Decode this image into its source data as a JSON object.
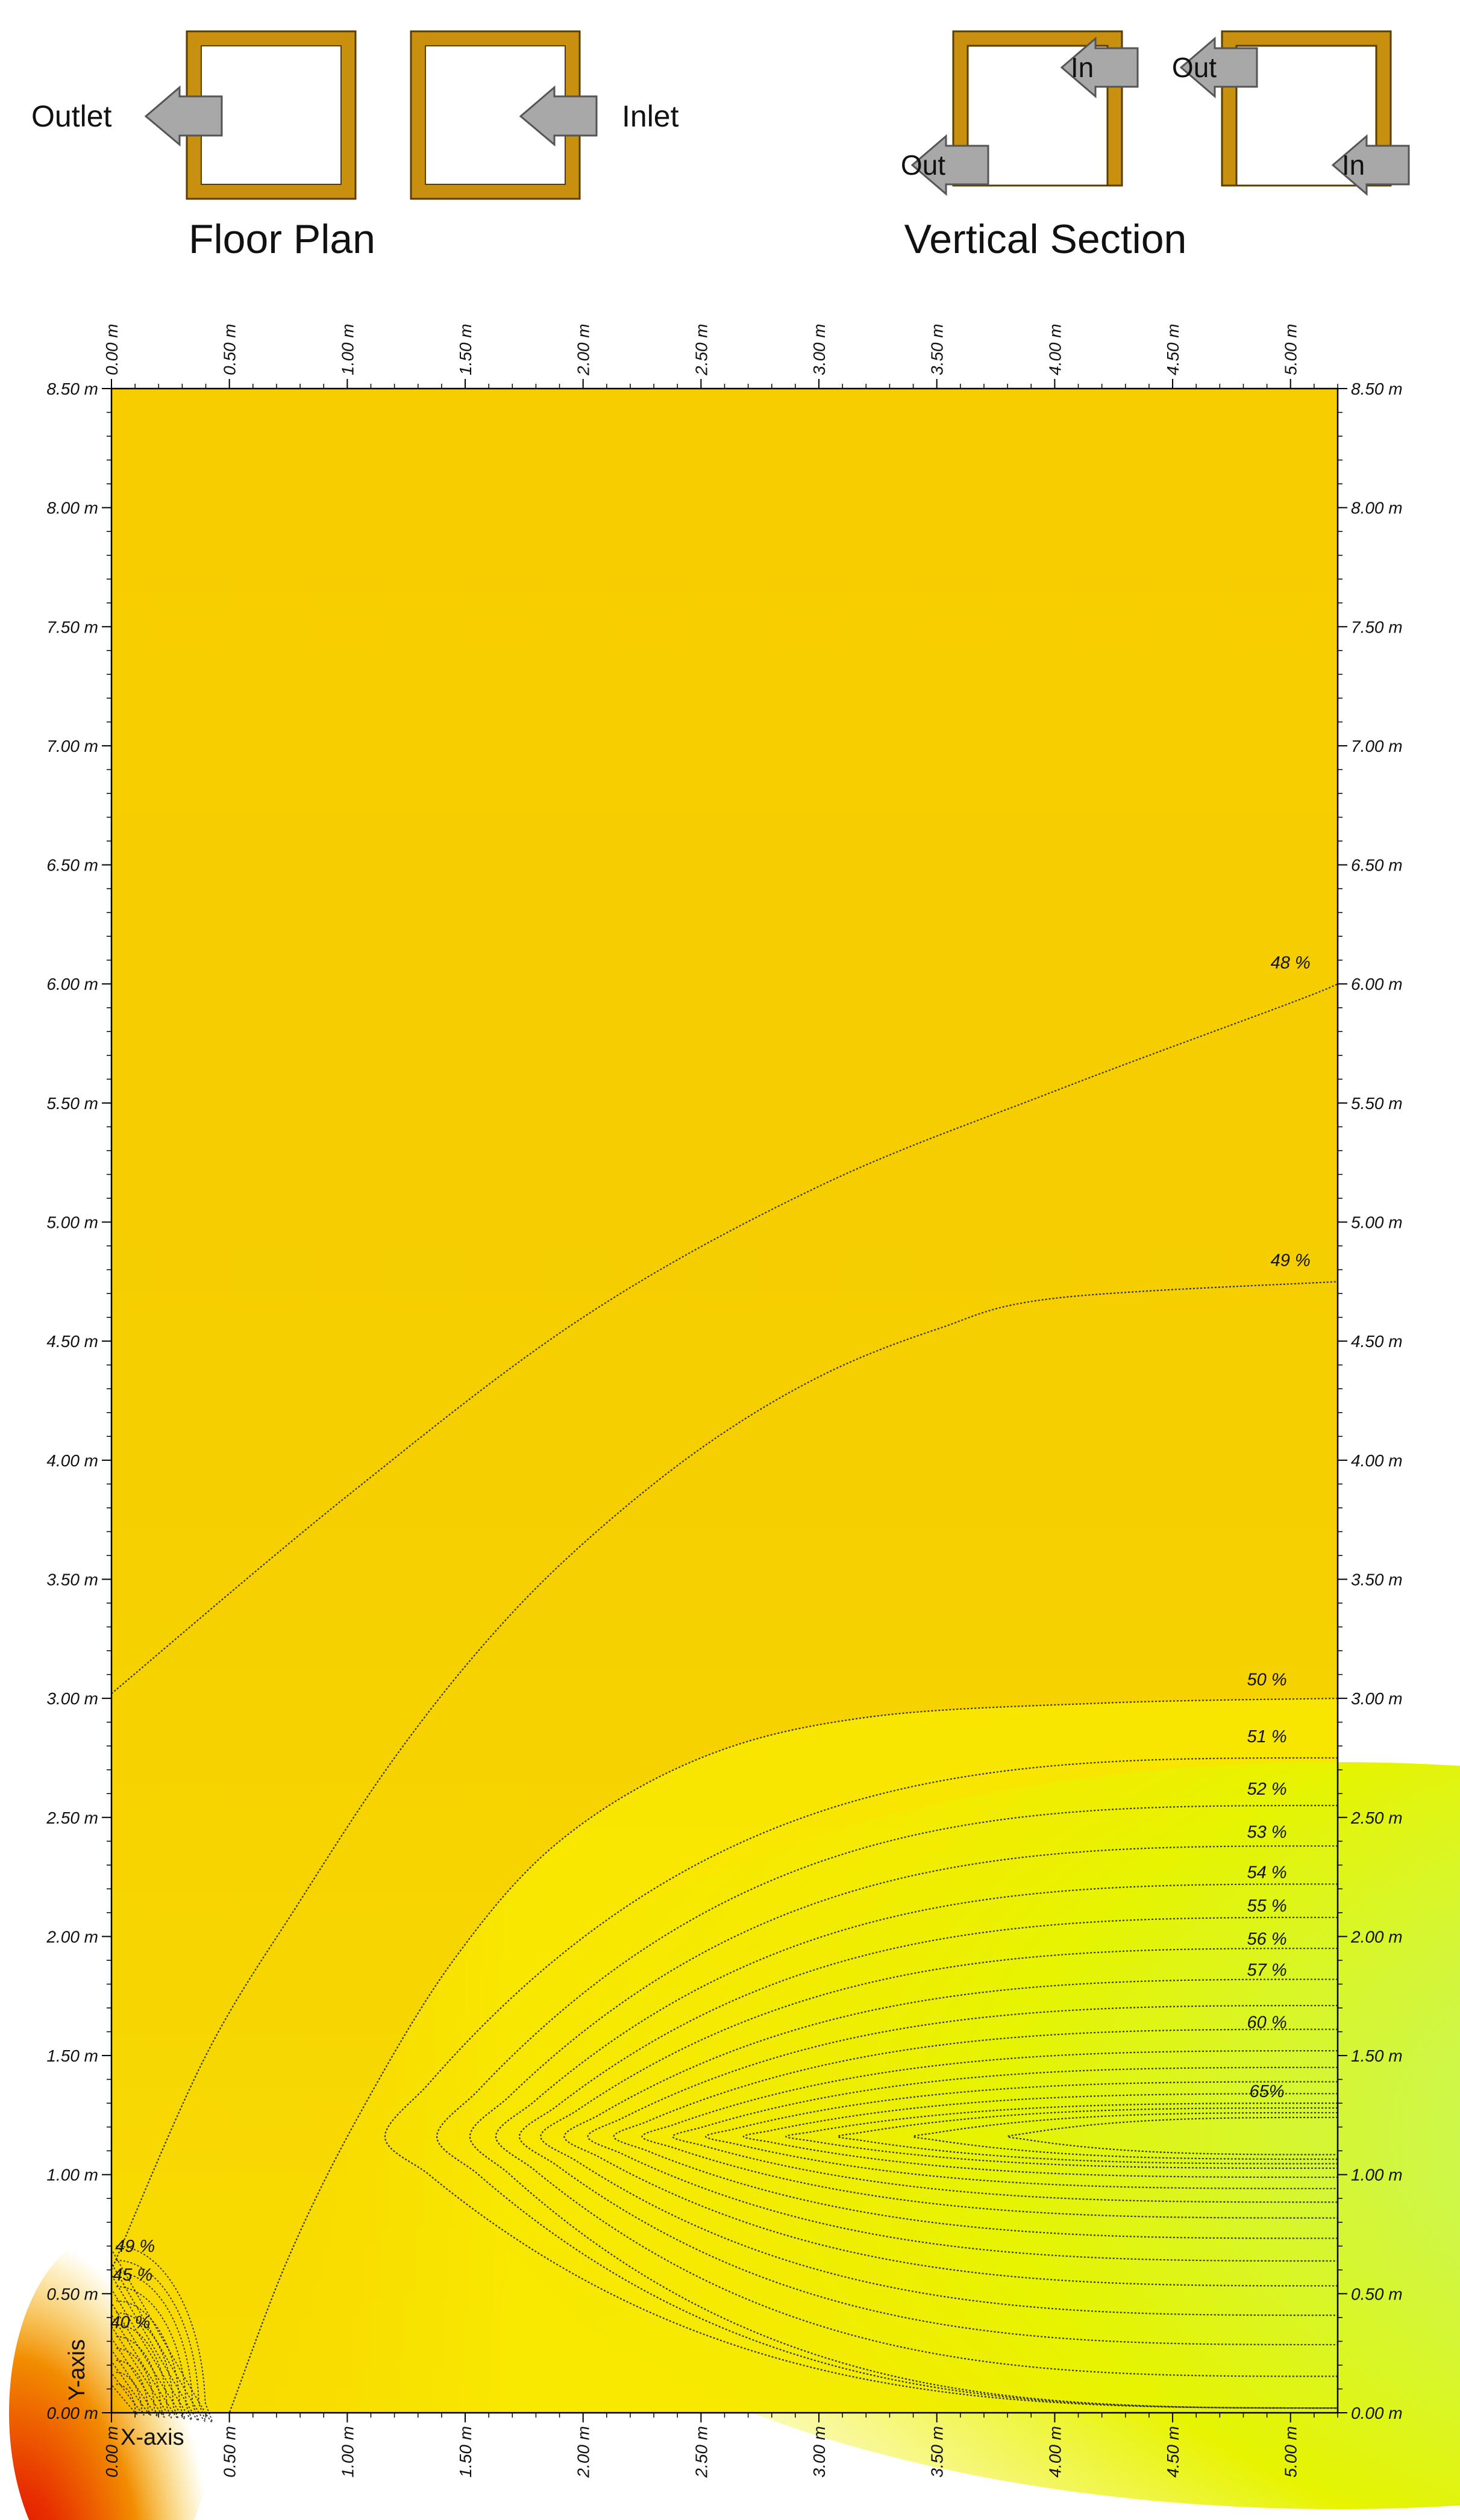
{
  "legend": {
    "floor_plan": {
      "title": "Floor Plan",
      "outlet_label": "Outlet",
      "inlet_label": "Inlet"
    },
    "vertical_section": {
      "title": "Vertical Section",
      "left_box": {
        "top_tag": "In",
        "bottom_tag": "Out"
      },
      "right_box": {
        "top_tag": "Out",
        "bottom_tag": "In"
      }
    },
    "colors": {
      "wall": "#c8900e",
      "arrow": "#a8a8a8"
    }
  },
  "chart_data": {
    "type": "contour",
    "xlabel": "X-axis",
    "ylabel": "Y-axis",
    "x_unit": "m",
    "y_unit": "m",
    "xlim": [
      0,
      5.2
    ],
    "ylim": [
      0,
      8.5
    ],
    "x_ticks": [
      "0.00 m",
      "0.50 m",
      "1.00 m",
      "1.50 m",
      "2.00 m",
      "2.50 m",
      "3.00 m",
      "3.50 m",
      "4.00 m",
      "4.50 m",
      "5.00 m"
    ],
    "y_ticks": [
      "0.00 m",
      "0.50 m",
      "1.00 m",
      "1.50 m",
      "2.00 m",
      "2.50 m",
      "3.00 m",
      "3.50 m",
      "4.00 m",
      "4.50 m",
      "5.00 m",
      "5.50 m",
      "6.00 m",
      "6.50 m",
      "7.00 m",
      "7.50 m",
      "8.00 m",
      "8.50 m"
    ],
    "x_tick_values": [
      0,
      0.5,
      1.0,
      1.5,
      2.0,
      2.5,
      3.0,
      3.5,
      4.0,
      4.5,
      5.0
    ],
    "y_tick_values": [
      0,
      0.5,
      1.0,
      1.5,
      2.0,
      2.5,
      3.0,
      3.5,
      4.0,
      4.5,
      5.0,
      5.5,
      6.0,
      6.5,
      7.0,
      7.5,
      8.0,
      8.5
    ],
    "colors": {
      "low": "#d00000",
      "mid_low": "#f6d000",
      "mid": "#f7e400",
      "high": "#b4ff90",
      "frame": "#000000"
    },
    "diagonal_isolines": [
      {
        "label": "48 %",
        "points": [
          [
            0,
            3.02
          ],
          [
            1.0,
            3.85
          ],
          [
            2.0,
            4.6
          ],
          [
            3.0,
            5.15
          ],
          [
            4.0,
            5.55
          ],
          [
            5.0,
            5.92
          ],
          [
            5.2,
            6.0
          ]
        ],
        "label_at": [
          5.0,
          6.05
        ]
      },
      {
        "label": "49 %",
        "points": [
          [
            0,
            0.6
          ],
          [
            0.4,
            1.5
          ],
          [
            0.8,
            2.15
          ],
          [
            1.2,
            2.75
          ],
          [
            1.6,
            3.25
          ],
          [
            2.0,
            3.65
          ],
          [
            2.5,
            4.05
          ],
          [
            3.0,
            4.35
          ],
          [
            3.5,
            4.55
          ],
          [
            4.0,
            4.68
          ],
          [
            5.2,
            4.75
          ]
        ],
        "label_at": [
          5.0,
          4.8
        ]
      }
    ],
    "horseshoe_isolines": [
      {
        "label": "50 %",
        "y_far": 3.0,
        "x_tip": 0.5,
        "y_tip": 0.0,
        "label_at": [
          4.9,
          3.04
        ]
      },
      {
        "label": "51 %",
        "y_far": 2.75,
        "x_tip": 1.16,
        "y_tip": 0.6,
        "label_at": [
          4.9,
          2.8
        ]
      },
      {
        "label": "52 %",
        "y_far": 2.55,
        "x_tip": 1.38,
        "y_tip": 0.75,
        "label_at": [
          4.9,
          2.58
        ]
      },
      {
        "label": "53 %",
        "y_far": 2.38,
        "x_tip": 1.52,
        "y_tip": 0.84,
        "label_at": [
          4.9,
          2.4
        ]
      },
      {
        "label": "54 %",
        "y_far": 2.22,
        "x_tip": 1.63,
        "y_tip": 0.91,
        "label_at": [
          4.9,
          2.23
        ]
      },
      {
        "label": "55 %",
        "y_far": 2.08,
        "x_tip": 1.73,
        "y_tip": 0.96,
        "label_at": [
          4.9,
          2.09
        ]
      },
      {
        "label": "56 %",
        "y_far": 1.95,
        "x_tip": 1.82,
        "y_tip": 1.0,
        "label_at": [
          4.9,
          1.95
        ]
      },
      {
        "label": "57 %",
        "y_far": 1.82,
        "x_tip": 1.92,
        "y_tip": 1.03,
        "label_at": [
          4.9,
          1.82
        ]
      },
      {
        "label": "",
        "y_far": 1.71,
        "x_tip": 2.02,
        "y_tip": 1.06
      },
      {
        "label": "",
        "y_far": 1.61,
        "x_tip": 2.13,
        "y_tip": 1.08
      },
      {
        "label": "60 %",
        "y_far": 1.52,
        "x_tip": 2.25,
        "y_tip": 1.1,
        "label_at": [
          4.9,
          1.6
        ]
      },
      {
        "label": "",
        "y_far": 1.45,
        "x_tip": 2.38,
        "y_tip": 1.12
      },
      {
        "label": "",
        "y_far": 1.39,
        "x_tip": 2.52,
        "y_tip": 1.13
      },
      {
        "label": "",
        "y_far": 1.34,
        "x_tip": 2.68,
        "y_tip": 1.14
      },
      {
        "label": "",
        "y_far": 1.3,
        "x_tip": 2.86,
        "y_tip": 1.15
      },
      {
        "label": "65%",
        "y_far": 1.28,
        "x_tip": 3.08,
        "y_tip": 1.16,
        "label_at": [
          4.9,
          1.31
        ]
      },
      {
        "label": "",
        "y_far": 1.26,
        "x_tip": 3.4,
        "y_tip": 1.16
      },
      {
        "label": "",
        "y_far": 1.24,
        "x_tip": 3.8,
        "y_tip": 1.16
      }
    ],
    "corner_isolines": [
      {
        "label": "49 %",
        "rx": 0.42,
        "ry": 0.7,
        "label_at": [
          0.1,
          0.66
        ]
      },
      {
        "label": "",
        "rx": 0.39,
        "ry": 0.64
      },
      {
        "label": "",
        "rx": 0.36,
        "ry": 0.59
      },
      {
        "label": "45 %",
        "rx": 0.33,
        "ry": 0.53,
        "label_at": [
          0.09,
          0.54
        ]
      },
      {
        "label": "",
        "rx": 0.3,
        "ry": 0.47
      },
      {
        "label": "",
        "rx": 0.27,
        "ry": 0.42
      },
      {
        "label": "",
        "rx": 0.24,
        "ry": 0.37
      },
      {
        "label": "40 %",
        "rx": 0.21,
        "ry": 0.32,
        "label_at": [
          0.08,
          0.34
        ]
      },
      {
        "label": "",
        "rx": 0.18,
        "ry": 0.27
      },
      {
        "label": "",
        "rx": 0.15,
        "ry": 0.22
      },
      {
        "label": "",
        "rx": 0.12,
        "ry": 0.17
      },
      {
        "label": "",
        "rx": 0.09,
        "ry": 0.12
      }
    ]
  }
}
